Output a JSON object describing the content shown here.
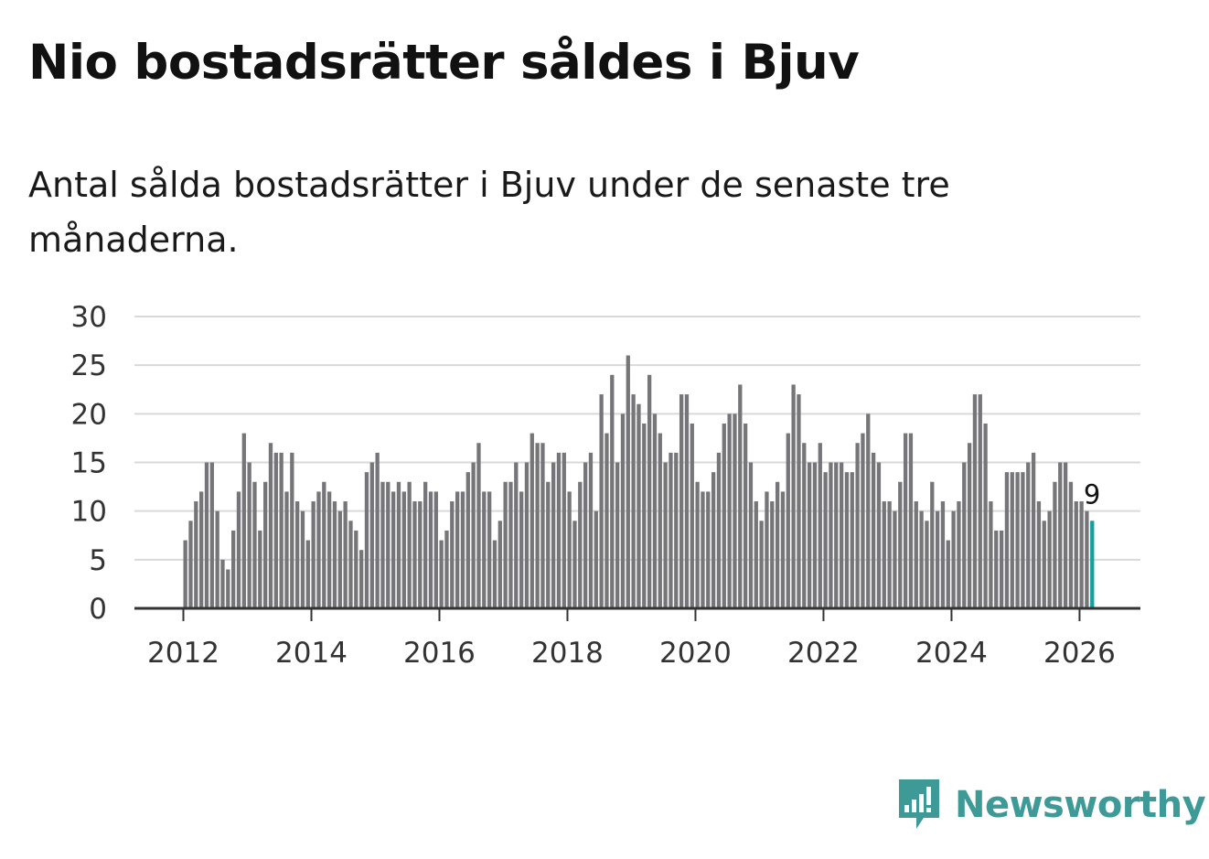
{
  "title": "Nio bostadsrätter såldes i Bjuv",
  "subtitle": "Antal sålda bostadsrätter i Bjuv under de senaste tre månaderna.",
  "brand": {
    "name": "Newsworthy",
    "icon": "newsworthy-logo-icon",
    "color": "#3d9a97"
  },
  "chart_data": {
    "type": "bar",
    "title": "Nio bostadsrätter såldes i Bjuv",
    "subtitle": "Antal sålda bostadsrätter i Bjuv under de senaste tre månaderna.",
    "xlabel": "",
    "ylabel": "",
    "ylim": [
      0,
      30
    ],
    "yticks": [
      0,
      5,
      10,
      15,
      20,
      25,
      30
    ],
    "xticks": [
      "2012",
      "2014",
      "2016",
      "2018",
      "2020",
      "2022",
      "2024",
      "2026"
    ],
    "x_start": "2012-01",
    "frequency": "monthly",
    "grid": true,
    "bar_color": "#76767a",
    "highlight_color": "#14a09d",
    "highlight_index": 170,
    "highlight_label": "9",
    "values": [
      7,
      9,
      11,
      12,
      15,
      15,
      10,
      5,
      4,
      8,
      12,
      18,
      15,
      13,
      8,
      13,
      17,
      16,
      16,
      12,
      16,
      11,
      10,
      7,
      11,
      12,
      13,
      12,
      11,
      10,
      11,
      9,
      8,
      6,
      14,
      15,
      16,
      13,
      13,
      12,
      13,
      12,
      13,
      11,
      11,
      13,
      12,
      12,
      7,
      8,
      11,
      12,
      12,
      14,
      15,
      17,
      12,
      12,
      7,
      9,
      13,
      13,
      15,
      12,
      15,
      18,
      17,
      17,
      13,
      15,
      16,
      16,
      12,
      9,
      13,
      15,
      16,
      10,
      22,
      18,
      24,
      15,
      20,
      26,
      22,
      21,
      19,
      24,
      20,
      18,
      15,
      16,
      16,
      22,
      22,
      19,
      13,
      12,
      12,
      14,
      16,
      19,
      20,
      20,
      23,
      19,
      15,
      11,
      9,
      12,
      11,
      13,
      12,
      18,
      23,
      22,
      17,
      15,
      15,
      17,
      14,
      15,
      15,
      15,
      14,
      14,
      17,
      18,
      20,
      16,
      15,
      11,
      11,
      10,
      13,
      18,
      18,
      11,
      10,
      9,
      13,
      10,
      11,
      7,
      10,
      11,
      15,
      17,
      22,
      22,
      19,
      11,
      8,
      8,
      14,
      14,
      14,
      14,
      15,
      16,
      11,
      9,
      10,
      13,
      15,
      15,
      13,
      11,
      11,
      10,
      9
    ]
  }
}
